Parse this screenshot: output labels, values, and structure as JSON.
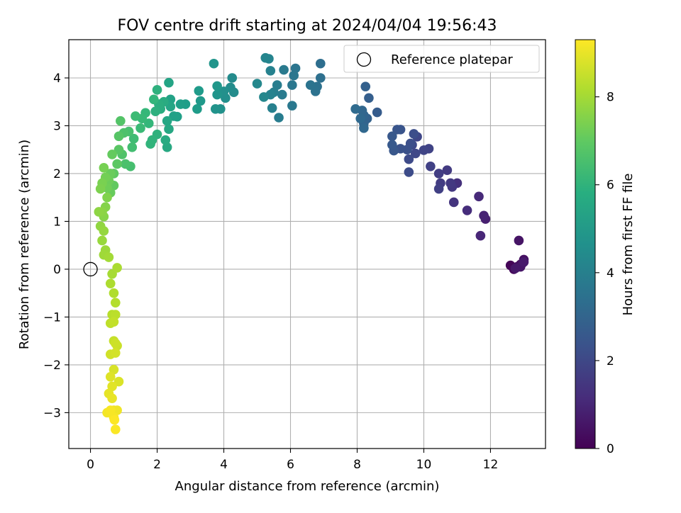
{
  "chart_data": {
    "type": "scatter",
    "title": "FOV centre drift starting at 2024/04/04 19:56:43",
    "xlabel": "Angular distance from reference (arcmin)",
    "ylabel": "Rotation from reference (arcmin)",
    "xlim": [
      -0.65,
      13.65
    ],
    "ylim": [
      -3.75,
      4.8
    ],
    "x_ticks": [
      0,
      2,
      4,
      6,
      8,
      10,
      12
    ],
    "x_tick_labels": [
      "0",
      "2",
      "4",
      "6",
      "8",
      "10",
      "12"
    ],
    "y_ticks": [
      -3,
      -2,
      -1,
      0,
      1,
      2,
      3,
      4
    ],
    "y_tick_labels": [
      "−3",
      "−2",
      "−1",
      "0",
      "1",
      "2",
      "3",
      "4"
    ],
    "grid": true,
    "legend": {
      "placement": "top-right",
      "entries": [
        {
          "label": "Reference platepar",
          "marker": "open-circle"
        }
      ]
    },
    "reference_point": {
      "x": 0,
      "y": 0
    },
    "colorbar": {
      "label": "Hours from first FF file",
      "colormap": "viridis",
      "range": [
        0,
        9.3
      ],
      "ticks": [
        0,
        2,
        4,
        6,
        8
      ],
      "tick_labels": [
        "0",
        "2",
        "4",
        "6",
        "8"
      ]
    },
    "points": [
      [
        12.6,
        0.08,
        0.1
      ],
      [
        12.7,
        0.0,
        0.2
      ],
      [
        12.8,
        0.05,
        0.3
      ],
      [
        12.9,
        0.1,
        0.35
      ],
      [
        13.0,
        0.2,
        0.4
      ],
      [
        12.95,
        0.12,
        0.45
      ],
      [
        12.85,
        0.6,
        0.5
      ],
      [
        12.9,
        0.05,
        0.55
      ],
      [
        12.75,
        0.02,
        0.6
      ],
      [
        13.0,
        0.15,
        0.65
      ],
      [
        11.85,
        1.05,
        0.8
      ],
      [
        11.8,
        1.12,
        0.9
      ],
      [
        11.7,
        0.7,
        1.0
      ],
      [
        11.65,
        1.52,
        1.1
      ],
      [
        11.3,
        1.23,
        1.2
      ],
      [
        11.0,
        1.8,
        1.3
      ],
      [
        10.9,
        1.4,
        1.4
      ],
      [
        10.85,
        1.72,
        1.5
      ],
      [
        10.8,
        1.8,
        1.55
      ],
      [
        10.7,
        2.07,
        1.6
      ],
      [
        10.5,
        1.8,
        1.65
      ],
      [
        10.45,
        2.0,
        1.7
      ],
      [
        10.45,
        1.68,
        1.75
      ],
      [
        10.2,
        2.15,
        1.8
      ],
      [
        10.15,
        2.52,
        1.85
      ],
      [
        10.0,
        2.49,
        1.9
      ],
      [
        9.8,
        2.77,
        1.95
      ],
      [
        9.75,
        2.42,
        2.0
      ],
      [
        9.65,
        2.6,
        2.05
      ],
      [
        9.55,
        2.3,
        2.1
      ],
      [
        9.55,
        2.03,
        2.15
      ],
      [
        9.7,
        2.83,
        2.2
      ],
      [
        9.6,
        2.63,
        2.25
      ],
      [
        9.5,
        2.5,
        2.3
      ],
      [
        9.3,
        2.52,
        2.35
      ],
      [
        9.3,
        2.92,
        2.4
      ],
      [
        9.2,
        2.92,
        2.45
      ],
      [
        9.1,
        2.48,
        2.5
      ],
      [
        9.05,
        2.78,
        2.55
      ],
      [
        9.05,
        2.6,
        2.6
      ],
      [
        8.6,
        3.28,
        2.7
      ],
      [
        8.35,
        3.58,
        2.8
      ],
      [
        8.25,
        3.82,
        2.85
      ],
      [
        8.3,
        3.15,
        2.9
      ],
      [
        8.2,
        3.05,
        2.95
      ],
      [
        8.2,
        3.22,
        3.0
      ],
      [
        8.15,
        3.32,
        3.05
      ],
      [
        8.2,
        2.95,
        3.1
      ],
      [
        8.1,
        3.15,
        3.15
      ],
      [
        7.95,
        3.35,
        3.2
      ],
      [
        6.9,
        4.3,
        3.35
      ],
      [
        6.9,
        4.0,
        3.4
      ],
      [
        6.8,
        3.82,
        3.45
      ],
      [
        6.75,
        3.72,
        3.5
      ],
      [
        6.6,
        3.85,
        3.55
      ],
      [
        6.15,
        4.2,
        3.6
      ],
      [
        6.1,
        4.05,
        3.65
      ],
      [
        6.05,
        3.85,
        3.7
      ],
      [
        6.05,
        3.42,
        3.75
      ],
      [
        5.8,
        4.17,
        3.8
      ],
      [
        5.75,
        3.65,
        3.85
      ],
      [
        5.65,
        3.17,
        3.9
      ],
      [
        5.6,
        3.85,
        3.95
      ],
      [
        5.5,
        3.7,
        4.0
      ],
      [
        5.45,
        3.37,
        4.05
      ],
      [
        5.4,
        4.15,
        4.1
      ],
      [
        5.4,
        3.65,
        4.15
      ],
      [
        5.35,
        4.4,
        4.2
      ],
      [
        5.25,
        4.42,
        4.25
      ],
      [
        5.2,
        3.6,
        4.3
      ],
      [
        5.0,
        3.88,
        4.35
      ],
      [
        4.25,
        4.0,
        4.45
      ],
      [
        4.3,
        3.7,
        4.5
      ],
      [
        4.2,
        3.8,
        4.55
      ],
      [
        4.05,
        3.58,
        4.6
      ],
      [
        4.0,
        3.72,
        4.65
      ],
      [
        3.9,
        3.35,
        4.7
      ],
      [
        3.75,
        3.35,
        4.75
      ],
      [
        3.8,
        3.65,
        4.8
      ],
      [
        3.7,
        4.3,
        4.85
      ],
      [
        3.8,
        3.83,
        4.9
      ],
      [
        3.3,
        3.52,
        5.0
      ],
      [
        3.25,
        3.73,
        5.05
      ],
      [
        3.2,
        3.35,
        5.1
      ],
      [
        2.85,
        3.45,
        5.15
      ],
      [
        2.7,
        3.45,
        5.2
      ],
      [
        2.6,
        3.19,
        5.25
      ],
      [
        2.5,
        3.2,
        5.3
      ],
      [
        2.4,
        3.55,
        5.35
      ],
      [
        2.35,
        3.9,
        5.4
      ],
      [
        2.4,
        3.4,
        5.45
      ],
      [
        2.3,
        3.1,
        5.5
      ],
      [
        2.35,
        2.93,
        5.55
      ],
      [
        2.3,
        2.55,
        5.6
      ],
      [
        2.25,
        2.7,
        5.65
      ],
      [
        2.2,
        3.5,
        5.7
      ],
      [
        2.1,
        3.35,
        5.75
      ],
      [
        2.05,
        3.45,
        5.8
      ],
      [
        1.95,
        3.3,
        5.85
      ],
      [
        2.0,
        3.75,
        5.9
      ],
      [
        2.0,
        2.82,
        5.95
      ],
      [
        1.85,
        2.7,
        6.0
      ],
      [
        1.8,
        2.62,
        6.05
      ],
      [
        1.9,
        3.55,
        6.1
      ],
      [
        1.75,
        3.05,
        6.15
      ],
      [
        1.65,
        3.27,
        6.2
      ],
      [
        1.55,
        3.15,
        6.25
      ],
      [
        1.5,
        2.95,
        6.3
      ],
      [
        1.35,
        3.2,
        6.35
      ],
      [
        1.3,
        2.73,
        6.4
      ],
      [
        1.25,
        2.55,
        6.45
      ],
      [
        1.2,
        2.15,
        6.5
      ],
      [
        1.15,
        2.88,
        6.55
      ],
      [
        1.05,
        2.2,
        6.6
      ],
      [
        1.0,
        2.85,
        6.65
      ],
      [
        0.95,
        2.4,
        6.7
      ],
      [
        0.9,
        3.1,
        6.75
      ],
      [
        0.85,
        2.78,
        6.8
      ],
      [
        0.85,
        2.5,
        6.85
      ],
      [
        0.8,
        2.2,
        6.9
      ],
      [
        0.7,
        2.0,
        6.95
      ],
      [
        0.7,
        1.75,
        7.0
      ],
      [
        0.65,
        2.4,
        7.05
      ],
      [
        0.6,
        1.6,
        7.1
      ],
      [
        0.6,
        2.0,
        7.15
      ],
      [
        0.55,
        1.85,
        7.2
      ],
      [
        0.5,
        1.7,
        7.25
      ],
      [
        0.45,
        1.92,
        7.3
      ],
      [
        0.4,
        2.12,
        7.35
      ],
      [
        0.35,
        1.8,
        7.4
      ],
      [
        0.3,
        1.68,
        7.45
      ],
      [
        0.5,
        1.5,
        7.5
      ],
      [
        0.45,
        1.3,
        7.55
      ],
      [
        0.4,
        1.1,
        7.6
      ],
      [
        0.35,
        1.2,
        7.65
      ],
      [
        0.25,
        1.2,
        7.7
      ],
      [
        0.3,
        0.9,
        7.75
      ],
      [
        0.4,
        0.8,
        7.8
      ],
      [
        0.35,
        0.6,
        7.85
      ],
      [
        0.45,
        0.4,
        7.9
      ],
      [
        0.4,
        0.3,
        7.95
      ],
      [
        0.55,
        0.25,
        8.0
      ],
      [
        0.65,
        -0.1,
        8.05
      ],
      [
        0.8,
        0.03,
        8.1
      ],
      [
        0.6,
        -0.3,
        8.15
      ],
      [
        0.7,
        -0.5,
        8.2
      ],
      [
        0.75,
        -0.7,
        8.25
      ],
      [
        0.65,
        -0.95,
        8.3
      ],
      [
        0.75,
        -0.95,
        8.35
      ],
      [
        0.6,
        -1.13,
        8.4
      ],
      [
        0.7,
        -1.1,
        8.45
      ],
      [
        0.7,
        -1.5,
        8.5
      ],
      [
        0.8,
        -1.6,
        8.55
      ],
      [
        0.75,
        -1.55,
        8.6
      ],
      [
        0.6,
        -1.78,
        8.65
      ],
      [
        0.75,
        -1.75,
        8.7
      ],
      [
        0.7,
        -2.1,
        8.75
      ],
      [
        0.85,
        -2.35,
        8.8
      ],
      [
        0.6,
        -2.25,
        8.85
      ],
      [
        0.65,
        -2.45,
        8.9
      ],
      [
        0.55,
        -2.6,
        8.95
      ],
      [
        0.65,
        -2.7,
        9.0
      ],
      [
        0.7,
        -2.95,
        9.05
      ],
      [
        0.8,
        -2.95,
        9.1
      ],
      [
        0.5,
        -3.0,
        9.15
      ],
      [
        0.7,
        -3.1,
        9.2
      ],
      [
        0.6,
        -2.95,
        9.22
      ],
      [
        0.75,
        -3.35,
        9.25
      ],
      [
        0.72,
        -3.15,
        9.28
      ]
    ]
  }
}
